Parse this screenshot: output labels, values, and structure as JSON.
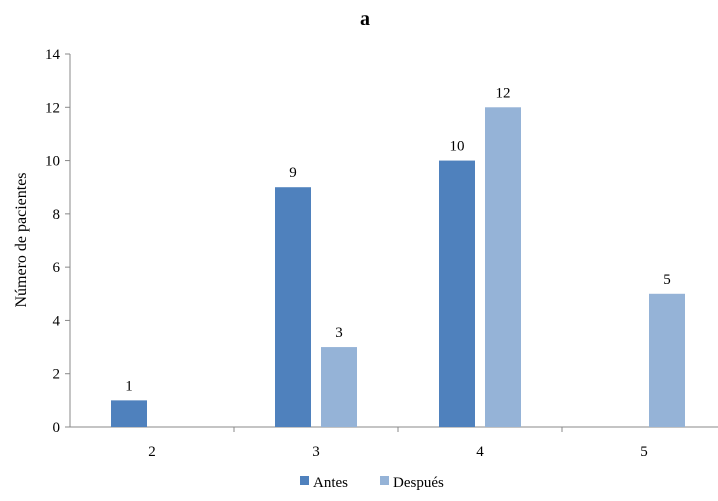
{
  "chart_data": {
    "type": "bar",
    "title": "a",
    "xlabel": "",
    "ylabel": "Número de pacientes",
    "categories": [
      "2",
      "3",
      "4",
      "5"
    ],
    "ylim": [
      0,
      14
    ],
    "yticks": [
      "0",
      "2",
      "4",
      "6",
      "8",
      "10",
      "12",
      "14"
    ],
    "grid": false,
    "legend_position": "bottom",
    "series": [
      {
        "name": "Antes",
        "color": "#4f81bd",
        "values": [
          1,
          9,
          10,
          0
        ],
        "labels": [
          "1",
          "9",
          "10",
          ""
        ]
      },
      {
        "name": "Después",
        "color": "#95b3d7",
        "values": [
          0,
          3,
          12,
          5
        ],
        "labels": [
          "",
          "3",
          "12",
          "5"
        ]
      }
    ]
  }
}
